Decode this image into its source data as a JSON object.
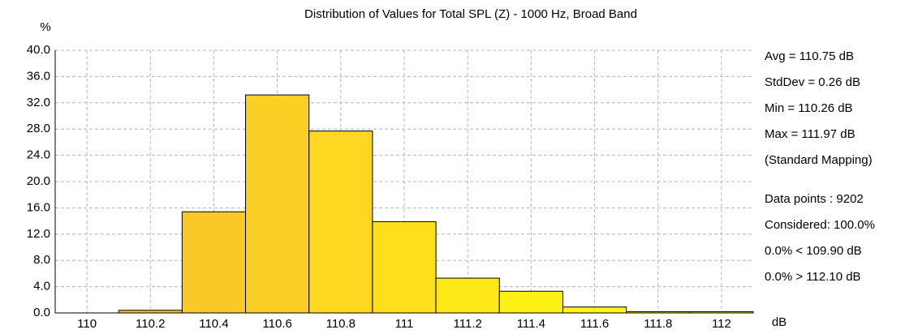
{
  "chart_data": {
    "type": "histogram",
    "title": "Distribution of Values for Total SPL (Z) - 1000 Hz, Broad Band",
    "y_label": "%",
    "x_label": "dB",
    "bins": [
      109.9,
      110.1,
      110.3,
      110.5,
      110.7,
      110.9,
      111.1,
      111.3,
      111.5,
      111.7,
      111.9,
      112.1
    ],
    "values": [
      0,
      0.4,
      15.4,
      33.2,
      27.7,
      13.9,
      5.3,
      3.3,
      0.9,
      0.2,
      0.2
    ],
    "colors": [
      "#f7c12a",
      "#f8c42a",
      "#fac928",
      "#fccf24",
      "#fdd720",
      "#fedf1c",
      "#ffe818",
      "#fff014",
      "#fff510",
      "#fffa0c",
      "#fffd08"
    ],
    "xlim": [
      109.9,
      112.1
    ],
    "xticks": [
      110,
      110.2,
      110.4,
      110.6,
      110.8,
      111,
      111.2,
      111.4,
      111.6,
      111.8,
      112
    ],
    "ylim": [
      0,
      40
    ],
    "yticks": [
      {
        "value": 0,
        "label": "0.0"
      },
      {
        "value": 4,
        "label": "4.0"
      },
      {
        "value": 8,
        "label": "8.0"
      },
      {
        "value": 12,
        "label": "12.0"
      },
      {
        "value": 16,
        "label": "16.0"
      },
      {
        "value": 20,
        "label": "20.0"
      },
      {
        "value": 24,
        "label": "24.0"
      },
      {
        "value": 28,
        "label": "28.0"
      },
      {
        "value": 32,
        "label": "32.0"
      },
      {
        "value": 36,
        "label": "36.0"
      },
      {
        "value": 40,
        "label": "40.0"
      }
    ],
    "grid": true,
    "annotations": [
      "Avg = 110.75 dB",
      "StdDev = 0.26 dB",
      "Min = 110.26 dB",
      "Max = 111.97 dB",
      "(Standard Mapping)",
      "Data points : 9202",
      "Considered: 100.0%",
      "0.0% < 109.90 dB",
      "0.0% > 112.10 dB"
    ]
  }
}
